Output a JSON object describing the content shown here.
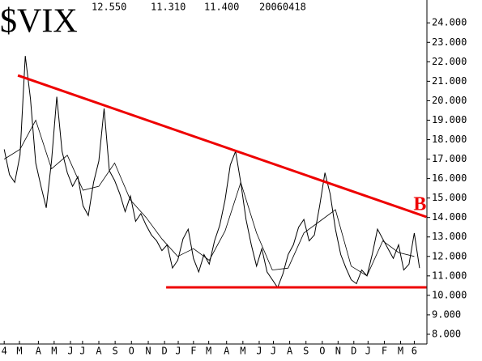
{
  "chart_data": {
    "type": "line",
    "symbol": "$VIX",
    "stats": [
      "12.550",
      "11.310",
      "11.400"
    ],
    "date": "20060418",
    "annotation": "B",
    "xlim": [
      -0.8,
      80.4
    ],
    "ylim": [
      7.5,
      24.8
    ],
    "xticks": [
      {
        "value": 0,
        "label": "4"
      },
      {
        "value": 2.9,
        "label": "M"
      },
      {
        "value": 6.5,
        "label": "A"
      },
      {
        "value": 9.5,
        "label": "M"
      },
      {
        "value": 12.6,
        "label": "J"
      },
      {
        "value": 14.9,
        "label": "J"
      },
      {
        "value": 18,
        "label": "A"
      },
      {
        "value": 21.1,
        "label": "S"
      },
      {
        "value": 24.2,
        "label": "O"
      },
      {
        "value": 27.4,
        "label": "N"
      },
      {
        "value": 30.5,
        "label": "D"
      },
      {
        "value": 33.1,
        "label": "J"
      },
      {
        "value": 36,
        "label": "F"
      },
      {
        "value": 38.9,
        "label": "M"
      },
      {
        "value": 42.3,
        "label": "A"
      },
      {
        "value": 45.4,
        "label": "M"
      },
      {
        "value": 48.5,
        "label": "J"
      },
      {
        "value": 51.2,
        "label": "J"
      },
      {
        "value": 54.3,
        "label": "A"
      },
      {
        "value": 57.4,
        "label": "S"
      },
      {
        "value": 60.5,
        "label": "O"
      },
      {
        "value": 63.5,
        "label": "N"
      },
      {
        "value": 66.5,
        "label": "D"
      },
      {
        "value": 69.2,
        "label": "J"
      },
      {
        "value": 72.3,
        "label": "F"
      },
      {
        "value": 75.4,
        "label": "M"
      },
      {
        "value": 78,
        "label": "6"
      }
    ],
    "yticks": [
      {
        "value": 8,
        "label": "8.000"
      },
      {
        "value": 9,
        "label": "9.000"
      },
      {
        "value": 10,
        "label": "10.000"
      },
      {
        "value": 11,
        "label": "11.000"
      },
      {
        "value": 12,
        "label": "12.000"
      },
      {
        "value": 13,
        "label": "13.000"
      },
      {
        "value": 14,
        "label": "14.000"
      },
      {
        "value": 15,
        "label": "15.000"
      },
      {
        "value": 16,
        "label": "16.000"
      },
      {
        "value": 17,
        "label": "17.000"
      },
      {
        "value": 18,
        "label": "18.000"
      },
      {
        "value": 19,
        "label": "19.000"
      },
      {
        "value": 20,
        "label": "20.000"
      },
      {
        "value": 21,
        "label": "21.000"
      },
      {
        "value": 22,
        "label": "22.000"
      },
      {
        "value": 23,
        "label": "23.000"
      },
      {
        "value": 24,
        "label": "24.000"
      }
    ],
    "series": [
      {
        "color": "#000000",
        "width": 1,
        "x": [
          0,
          1,
          2,
          3,
          4,
          5,
          6,
          7,
          8,
          9,
          10,
          11,
          12,
          13,
          14,
          15,
          16,
          17,
          18,
          19,
          20,
          21,
          22,
          23,
          24,
          25,
          26,
          27,
          28,
          29,
          30,
          31,
          32,
          33,
          34,
          35,
          36,
          37,
          38,
          39,
          40,
          41,
          42,
          43,
          44,
          45,
          46,
          47,
          48,
          49,
          50,
          51,
          52,
          53,
          54,
          55,
          56,
          57,
          58,
          59,
          60,
          61,
          62,
          63,
          64,
          65,
          66,
          67,
          68,
          69,
          70,
          71,
          72,
          73,
          74,
          75,
          76,
          77,
          78,
          79
        ],
        "values": [
          17.5,
          16.2,
          15.8,
          17.2,
          22.3,
          20.1,
          16.8,
          15.6,
          14.5,
          16.9,
          20.2,
          17.4,
          16.3,
          15.6,
          16.1,
          14.6,
          14.1,
          15.8,
          16.9,
          19.6,
          16.4,
          15.9,
          15.2,
          14.3,
          15.1,
          13.8,
          14.2,
          13.6,
          13.1,
          12.8,
          12.3,
          12.6,
          11.4,
          11.8,
          12.9,
          13.4,
          11.9,
          11.2,
          12.1,
          11.6,
          12.8,
          13.6,
          14.9,
          16.7,
          17.4,
          15.8,
          13.9,
          12.6,
          11.5,
          12.4,
          11.2,
          10.8,
          10.4,
          11.1,
          12.1,
          12.6,
          13.5,
          13.9,
          12.8,
          13.1,
          14.6,
          16.3,
          15.2,
          13.4,
          12.1,
          11.4,
          10.8,
          10.6,
          11.3,
          11.0,
          12.1,
          13.4,
          12.9,
          12.4,
          11.9,
          12.6,
          11.3,
          11.6,
          13.2,
          11.4
        ]
      },
      {
        "color": "#000000",
        "width": 0.8,
        "x": [
          0,
          3,
          6,
          9,
          12,
          15,
          18,
          21,
          24,
          27,
          30,
          33,
          36,
          39,
          42,
          45,
          48,
          51,
          54,
          57,
          60,
          63,
          66,
          69,
          72,
          75,
          78
        ],
        "values": [
          17.0,
          17.5,
          19.0,
          16.5,
          17.2,
          15.4,
          15.6,
          16.8,
          14.9,
          14.0,
          12.9,
          12.0,
          12.4,
          11.8,
          13.3,
          15.8,
          13.2,
          11.3,
          11.4,
          13.2,
          13.8,
          14.4,
          11.5,
          11.0,
          12.8,
          12.2,
          12.0
        ]
      }
    ],
    "trendlines": [
      {
        "color": "#ee0000",
        "x": [
          2.6,
          80.3
        ],
        "values": [
          21.3,
          14.03
        ]
      },
      {
        "color": "#ee0000",
        "x": [
          30.8,
          80.3
        ],
        "values": [
          10.41,
          10.41
        ]
      }
    ]
  }
}
